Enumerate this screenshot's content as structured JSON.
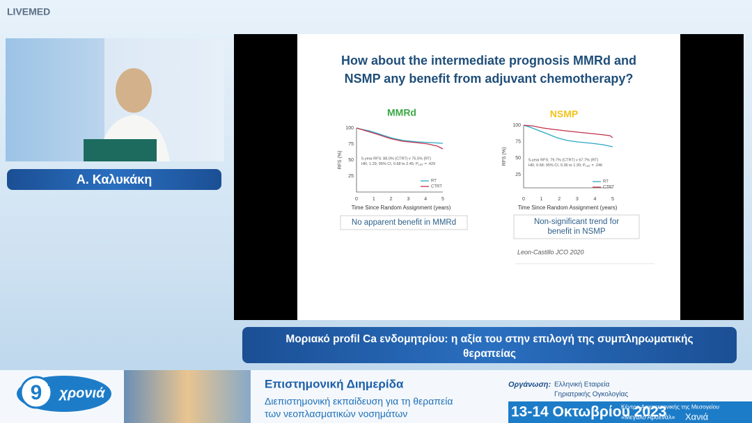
{
  "header": {
    "logo": "LIVEMED"
  },
  "speaker": {
    "name": "Α. Καλυκάκη"
  },
  "slide": {
    "title_lines": [
      "How about the intermediate prognosis MMRd and",
      "NSMP any benefit from adjuvant chemotherapy?"
    ],
    "charts": [
      {
        "title": "MMRd",
        "y_label": "RFS (%)",
        "x_label": "Time Since Random Assignment (years)",
        "y_ticks": [
          "100",
          "75",
          "50",
          "25"
        ],
        "x_ticks": [
          "0",
          "1",
          "2",
          "3",
          "4",
          "5"
        ],
        "annotation": [
          "5-year RFS: 88.0% (CTRT) v 75.5% (RT)",
          "HR, 1.29; 95% CI, 0.68 to 2.45; P",
          "LRT",
          " = .429"
        ],
        "legend": [
          "RT",
          "CTRT"
        ],
        "finding": [
          "No apparent benefit in MMRd"
        ]
      },
      {
        "title": "NSMP",
        "y_label": "RFS (%)",
        "x_label": "Time Since Random Assignment (years)",
        "y_ticks": [
          "100",
          "75",
          "50",
          "25"
        ],
        "x_ticks": [
          "0",
          "1",
          "2",
          "3",
          "4",
          "5"
        ],
        "annotation": [
          "5-year RFS: 79.7% (CTRT) v 67.7% (RT)",
          "HR, 0.68; 95% CI, 0.36 to 1.30; P",
          "LRT",
          " = .246"
        ],
        "legend": [
          "RT",
          "CTRT"
        ],
        "finding": [
          "Non-significant trend for",
          "benefit in NSMP"
        ]
      }
    ],
    "reference": "Leon-Castillo JCO 2020"
  },
  "caption": {
    "lines": [
      "Μοριακό profil Ca ενδομητρίου: η αξία του στην επιλογή της συμπληρωματικής",
      "θεραπείας"
    ]
  },
  "footer": {
    "badge": {
      "number": "9",
      "suffix": "η",
      "word": "χρονιά"
    },
    "event_title": "Επιστημονική Διημερίδα",
    "event_subtitle": [
      "Διεπιστημονική εκπαίδευση για τη θεραπεία",
      "των νεοπλασματικών νοσημάτων"
    ],
    "organizer_label": "Οργάνωση:",
    "organizer": [
      "Ελληνική Εταιρεία",
      "Γηριατρικής Ογκολογίας"
    ],
    "dates": "13-14 Οκτωβρίου 2023",
    "venue": "Κέντρο Αρχιτεκτονικής της Μεσογείου",
    "venue_name": "«Μεγάλο Αρσενάλ»",
    "city": "Χανιά"
  }
}
